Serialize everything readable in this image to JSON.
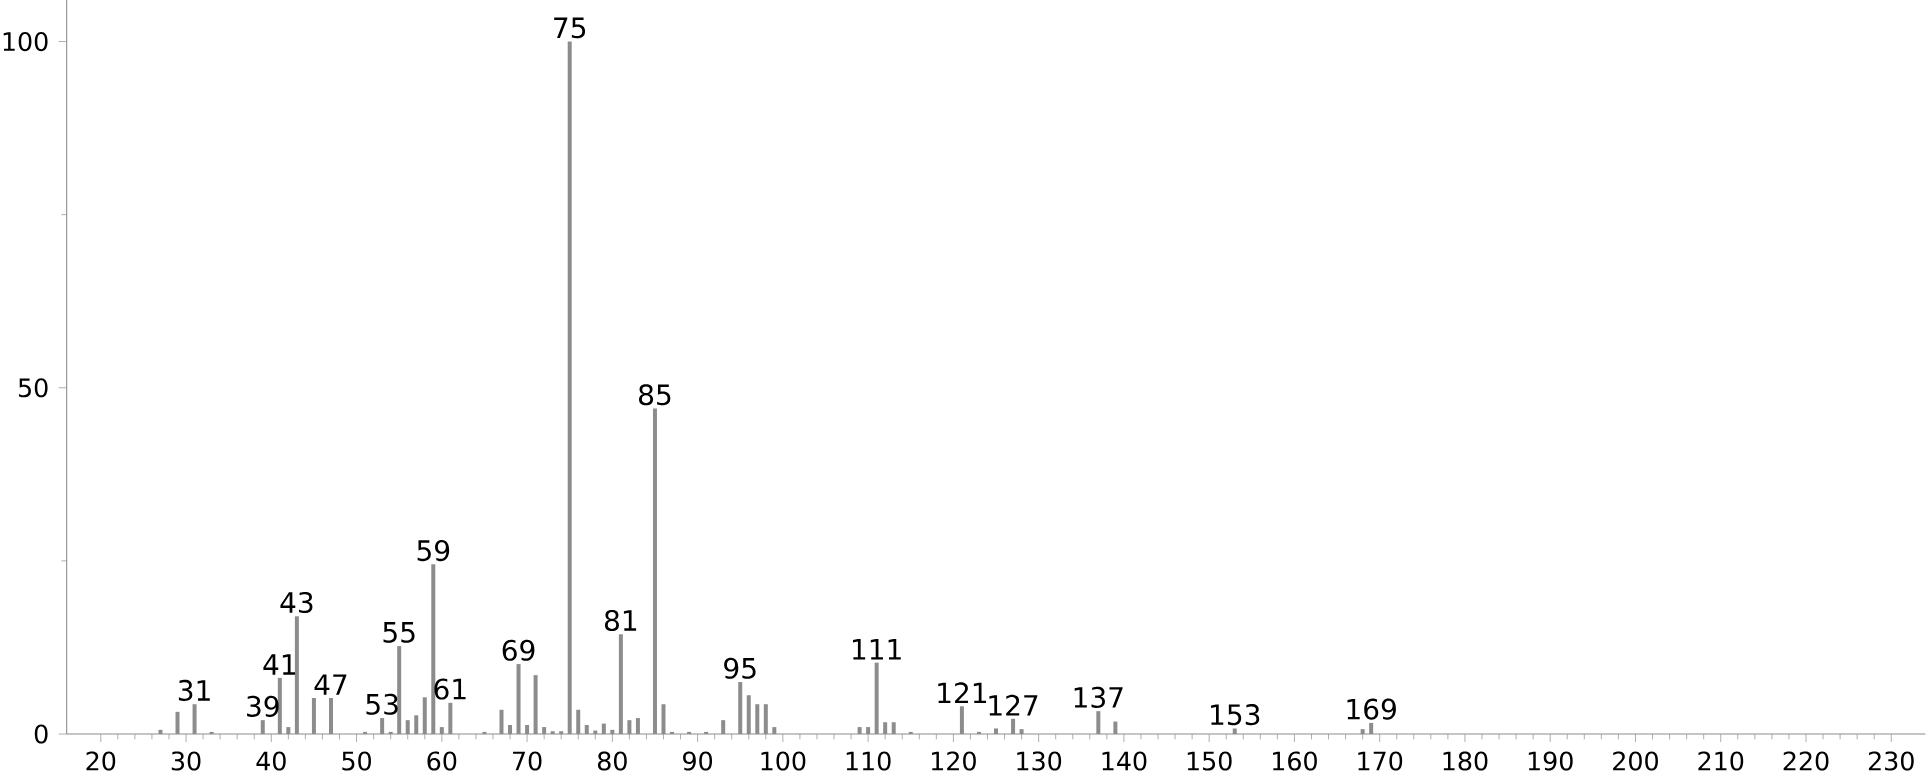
{
  "chart_data": {
    "type": "bar",
    "x": [
      27,
      29,
      31,
      33,
      39,
      41,
      42,
      43,
      45,
      47,
      51,
      53,
      54,
      55,
      56,
      57,
      58,
      59,
      60,
      61,
      65,
      67,
      68,
      69,
      70,
      71,
      72,
      73,
      74,
      75,
      76,
      77,
      78,
      79,
      80,
      81,
      82,
      83,
      85,
      86,
      87,
      89,
      91,
      93,
      95,
      96,
      97,
      98,
      99,
      109,
      110,
      111,
      112,
      113,
      115,
      121,
      123,
      125,
      127,
      128,
      137,
      139,
      153,
      168,
      169
    ],
    "values": [
      0.6,
      3.2,
      4.3,
      0.3,
      2,
      8.1,
      1,
      17,
      5.2,
      5.2,
      0.3,
      2.3,
      0.3,
      12.7,
      2,
      2.7,
      5.3,
      24.5,
      1,
      4.5,
      0.3,
      3.5,
      1.3,
      10.1,
      1.3,
      8.5,
      1,
      0.4,
      0.4,
      100,
      3.5,
      1.3,
      0.5,
      1.5,
      0.6,
      14.4,
      2,
      2.3,
      47,
      4.3,
      0.3,
      0.3,
      0.3,
      2,
      7.5,
      5.6,
      4.3,
      4.3,
      1,
      1,
      1,
      10.3,
      1.7,
      1.7,
      0.3,
      4,
      0.3,
      0.8,
      2.2,
      0.7,
      3.3,
      1.8,
      0.8,
      0.7,
      1.6
    ],
    "color": "#8c8c8c",
    "xlim": [
      16,
      234
    ],
    "xticks": [
      20,
      30,
      40,
      50,
      60,
      70,
      80,
      90,
      100,
      110,
      120,
      130,
      140,
      150,
      160,
      170,
      180,
      190,
      200,
      210,
      220,
      230
    ],
    "ylim": [
      0,
      106
    ],
    "yticks": [
      0,
      50,
      100
    ],
    "annotations": [
      {
        "text": "31",
        "x": 31,
        "y": 4.3
      },
      {
        "text": "39",
        "x": 39,
        "y": 2
      },
      {
        "text": "41",
        "x": 41,
        "y": 8.1
      },
      {
        "text": "43",
        "x": 43,
        "y": 17
      },
      {
        "text": "47",
        "x": 47,
        "y": 5.2
      },
      {
        "text": "53",
        "x": 53,
        "y": 2.3
      },
      {
        "text": "55",
        "x": 55,
        "y": 12.7
      },
      {
        "text": "59",
        "x": 59,
        "y": 24.5
      },
      {
        "text": "61",
        "x": 61,
        "y": 4.5
      },
      {
        "text": "69",
        "x": 69,
        "y": 10.1
      },
      {
        "text": "75",
        "x": 75,
        "y": 100
      },
      {
        "text": "81",
        "x": 81,
        "y": 14.4
      },
      {
        "text": "85",
        "x": 85,
        "y": 47
      },
      {
        "text": "95",
        "x": 95,
        "y": 7.5
      },
      {
        "text": "111",
        "x": 111,
        "y": 10.3
      },
      {
        "text": "121",
        "x": 121,
        "y": 4
      },
      {
        "text": "127",
        "x": 127,
        "y": 2.2
      },
      {
        "text": "137",
        "x": 137,
        "y": 3.3
      },
      {
        "text": "153",
        "x": 153,
        "y": 0.8
      },
      {
        "text": "169",
        "x": 169,
        "y": 1.6
      }
    ]
  }
}
